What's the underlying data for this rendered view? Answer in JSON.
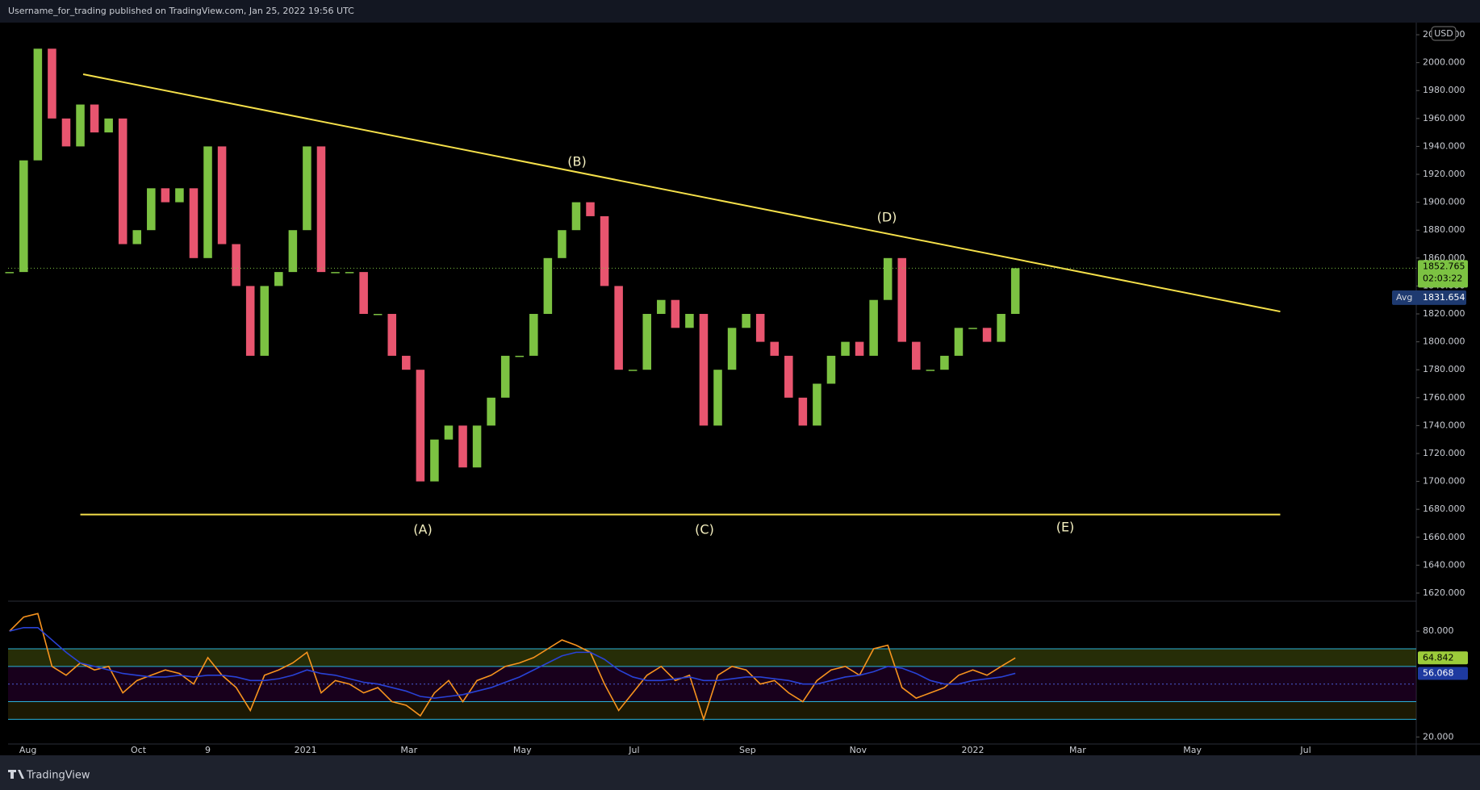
{
  "header": {
    "text": "Username_for_trading published on TradingView.com, Jan 25, 2022 19:56 UTC"
  },
  "footer": {
    "brand": "TradingView"
  },
  "chart_data": [
    {
      "type": "candlestick",
      "currency": "USD",
      "values": [
        1850,
        1930,
        2010,
        1960,
        1940,
        1970,
        1950,
        1960,
        1870,
        1880,
        1910,
        1900,
        1910,
        1860,
        1940,
        1870,
        1840,
        1790,
        1840,
        1850,
        1880,
        1940,
        1850,
        1850,
        1850,
        1820,
        1820,
        1790,
        1780,
        1700,
        1730,
        1740,
        1710,
        1740,
        1760,
        1790,
        1790,
        1820,
        1860,
        1880,
        1900,
        1890,
        1840,
        1780,
        1780,
        1820,
        1830,
        1810,
        1820,
        1740,
        1780,
        1810,
        1820,
        1800,
        1790,
        1760,
        1740,
        1770,
        1790,
        1800,
        1790,
        1830,
        1860,
        1800,
        1780,
        1780,
        1790,
        1810,
        1810,
        1800,
        1820,
        1852.765
      ],
      "up_color": "#7cc242",
      "down_color": "#e8556f",
      "xlim": [
        -0.1,
        99.3
      ],
      "ylim": [
        1614.2,
        2028.7
      ],
      "yticks": [
        {
          "value": 1620,
          "label": "1620.000"
        },
        {
          "value": 1640,
          "label": "1640.000"
        },
        {
          "value": 1660,
          "label": "1660.000"
        },
        {
          "value": 1680,
          "label": "1680.000"
        },
        {
          "value": 1700,
          "label": "1700.000"
        },
        {
          "value": 1720,
          "label": "1720.000"
        },
        {
          "value": 1740,
          "label": "1740.000"
        },
        {
          "value": 1760,
          "label": "1760.000"
        },
        {
          "value": 1780,
          "label": "1780.000"
        },
        {
          "value": 1800,
          "label": "1800.000"
        },
        {
          "value": 1820,
          "label": "1820.000"
        },
        {
          "value": 1840,
          "label": "1840.000"
        },
        {
          "value": 1860,
          "label": "1860.000"
        },
        {
          "value": 1880,
          "label": "1880.000"
        },
        {
          "value": 1900,
          "label": "1900.000"
        },
        {
          "value": 1920,
          "label": "1920.000"
        },
        {
          "value": 1940,
          "label": "1940.000"
        },
        {
          "value": 1960,
          "label": "1960.000"
        },
        {
          "value": 1980,
          "label": "1980.000"
        },
        {
          "value": 2000,
          "label": "2000.000"
        },
        {
          "value": 2020,
          "label": "2020.000"
        }
      ],
      "countdown": "02:03:22",
      "avg": {
        "label": "Avg",
        "value": 1831.654
      },
      "trendlines": [
        {
          "x": [
            5.2,
            89.7
          ],
          "y": [
            1991.7,
            1821.7
          ],
          "color": "#f5e04a"
        },
        {
          "x": [
            5.0,
            89.7
          ],
          "y": [
            1676.3,
            1676.3
          ],
          "color": "#f5e04a"
        }
      ],
      "wave_labels": [
        "(A)",
        "(B)",
        "(C)",
        "(D)",
        "(E)"
      ]
    },
    {
      "type": "line",
      "series": [
        {
          "color": "#f7931e",
          "values": [
            80,
            88,
            90,
            60,
            55,
            62,
            58,
            60,
            45,
            52,
            55,
            58,
            56,
            50,
            65,
            55,
            48,
            35,
            55,
            58,
            62,
            68,
            45,
            52,
            50,
            45,
            48,
            40,
            38,
            32,
            45,
            52,
            40,
            52,
            55,
            60,
            62,
            65,
            70,
            75,
            72,
            68,
            50,
            35,
            45,
            55,
            60,
            52,
            55,
            30,
            55,
            60,
            58,
            50,
            52,
            45,
            40,
            52,
            58,
            60,
            55,
            70,
            72,
            48,
            42,
            45,
            48,
            55,
            58,
            55,
            60,
            64.842
          ]
        },
        {
          "color": "#2942d6",
          "values": [
            80,
            82,
            82,
            75,
            68,
            62,
            60,
            58,
            56,
            55,
            54,
            54,
            55,
            54,
            55,
            55,
            54,
            52,
            52,
            53,
            55,
            58,
            56,
            55,
            53,
            51,
            50,
            48,
            46,
            43,
            42,
            43,
            44,
            46,
            48,
            51,
            54,
            58,
            62,
            66,
            68,
            68,
            64,
            58,
            54,
            52,
            52,
            53,
            54,
            52,
            52,
            53,
            54,
            54,
            53,
            52,
            50,
            50,
            52,
            54,
            55,
            57,
            60,
            59,
            56,
            52,
            50,
            50,
            52,
            53,
            54,
            56.068
          ]
        }
      ],
      "levels": [
        30,
        40,
        50,
        60,
        70
      ],
      "xlim": [
        -0.1,
        99.3
      ],
      "xticks": [
        {
          "value": 1.3,
          "label": "Aug"
        },
        {
          "value": 9.1,
          "label": "Oct"
        },
        {
          "value": 14.0,
          "label": "9"
        },
        {
          "value": 20.9,
          "label": "2021"
        },
        {
          "value": 28.2,
          "label": "Mar"
        },
        {
          "value": 36.2,
          "label": "May"
        },
        {
          "value": 44.1,
          "label": "Jul"
        },
        {
          "value": 52.1,
          "label": "Sep"
        },
        {
          "value": 59.9,
          "label": "Nov"
        },
        {
          "value": 68.0,
          "label": "2022"
        },
        {
          "value": 75.4,
          "label": "Mar"
        },
        {
          "value": 83.5,
          "label": "May"
        },
        {
          "value": 91.5,
          "label": "Jul"
        }
      ],
      "ylim": [
        16,
        97
      ],
      "yticks": [
        {
          "value": 20,
          "label": "20.000"
        },
        {
          "value": 80,
          "label": "80.000"
        }
      ]
    }
  ]
}
